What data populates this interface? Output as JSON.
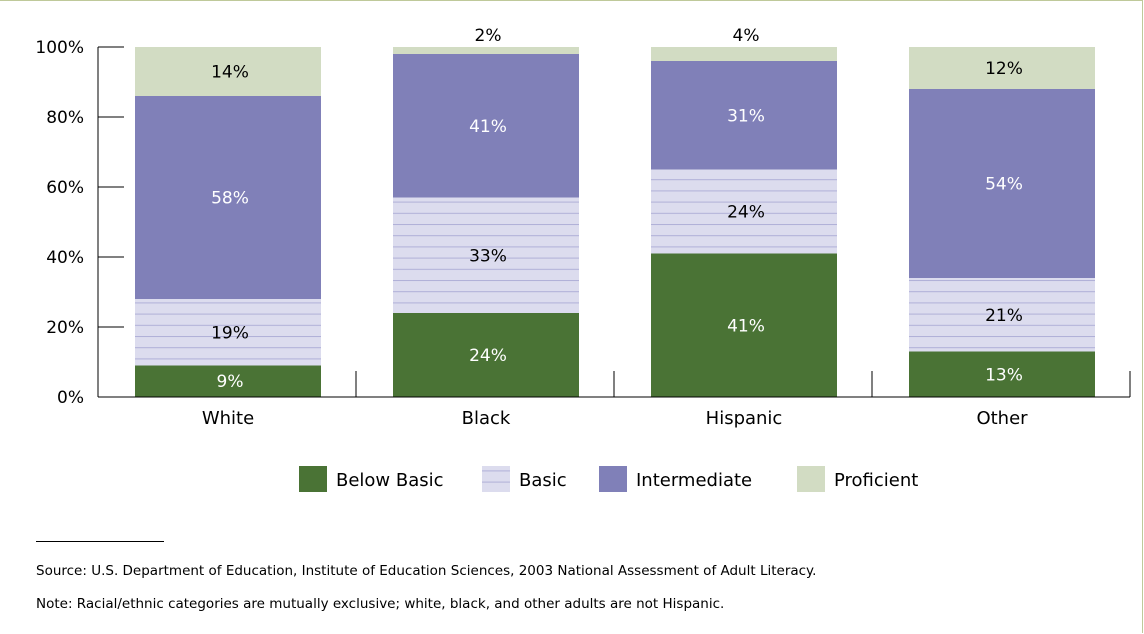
{
  "chart_data": {
    "type": "bar",
    "stacked": true,
    "categories": [
      "White",
      "Black",
      "Hispanic",
      "Other"
    ],
    "series": [
      {
        "name": "Below Basic",
        "values": [
          9,
          24,
          41,
          13
        ],
        "color": "#4a7335",
        "label_color": "#ffffff",
        "pattern": "solid"
      },
      {
        "name": "Basic",
        "values": [
          19,
          33,
          24,
          21
        ],
        "color": "#dcdcee",
        "label_color": "#000000",
        "pattern": "horizontal-lines"
      },
      {
        "name": "Intermediate",
        "values": [
          58,
          41,
          31,
          54
        ],
        "color": "#8080b8",
        "label_color": "#ffffff",
        "pattern": "solid"
      },
      {
        "name": "Proficient",
        "values": [
          14,
          2,
          4,
          12
        ],
        "color": "#d2dcc3",
        "label_color": "#000000",
        "pattern": "solid"
      }
    ],
    "y_ticks": [
      "0%",
      "20%",
      "40%",
      "60%",
      "80%",
      "100%"
    ],
    "ylim": [
      0,
      100
    ],
    "grid": false,
    "legend_position": "bottom"
  },
  "footnotes": {
    "source": "Source: U.S. Department of Education, Institute of Education Sciences, 2003 National Assessment of Adult Literacy.",
    "note": "Note: Racial/ethnic categories are mutually exclusive; white, black, and other adults are not Hispanic."
  }
}
